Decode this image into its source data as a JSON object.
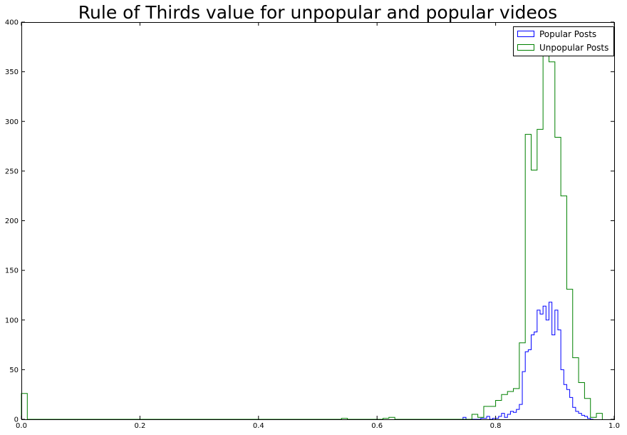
{
  "chart_data": {
    "type": "histogram",
    "title": "Rule of Thirds value for unpopular and popular videos",
    "xlabel": "",
    "ylabel": "",
    "xlim": [
      0.0,
      1.0
    ],
    "ylim": [
      0,
      400
    ],
    "x_ticks": [
      0.0,
      0.2,
      0.4,
      0.6,
      0.8,
      1.0
    ],
    "x_tick_labels": [
      "0.0",
      "0.2",
      "0.4",
      "0.6",
      "0.8",
      "1.0"
    ],
    "y_ticks": [
      0,
      50,
      100,
      150,
      200,
      250,
      300,
      350,
      400
    ],
    "y_tick_labels": [
      "0",
      "50",
      "100",
      "150",
      "200",
      "250",
      "300",
      "350",
      "400"
    ],
    "grid": false,
    "legend": {
      "position": "top-right"
    },
    "series": [
      {
        "name": "Popular Posts",
        "color": "#0000ff",
        "bin_edges": [
          0.745,
          0.75,
          0.755,
          0.76,
          0.765,
          0.77,
          0.775,
          0.78,
          0.785,
          0.79,
          0.795,
          0.8,
          0.805,
          0.81,
          0.815,
          0.82,
          0.825,
          0.83,
          0.835,
          0.84,
          0.845,
          0.85,
          0.855,
          0.86,
          0.865,
          0.87,
          0.875,
          0.88,
          0.885,
          0.89,
          0.895,
          0.9,
          0.905,
          0.91,
          0.915,
          0.92,
          0.925,
          0.93,
          0.935,
          0.94,
          0.945,
          0.95,
          0.955,
          0.96,
          0.965
        ],
        "values": [
          2,
          0,
          0,
          0,
          0,
          0,
          1,
          1,
          3,
          0,
          1,
          1,
          3,
          6,
          2,
          5,
          8,
          7,
          10,
          15,
          48,
          68,
          70,
          85,
          88,
          110,
          106,
          114,
          100,
          118,
          85,
          110,
          90,
          50,
          35,
          30,
          22,
          12,
          8,
          6,
          4,
          3,
          1,
          0
        ]
      },
      {
        "name": "Unpopular Posts",
        "color": "#008000",
        "bin_edges": [
          0.0,
          0.01,
          0.02,
          0.03,
          0.04,
          0.05,
          0.06,
          0.07,
          0.08,
          0.09,
          0.1,
          0.11,
          0.12,
          0.13,
          0.14,
          0.15,
          0.16,
          0.17,
          0.18,
          0.19,
          0.2,
          0.21,
          0.22,
          0.23,
          0.24,
          0.25,
          0.26,
          0.27,
          0.28,
          0.29,
          0.3,
          0.31,
          0.32,
          0.33,
          0.34,
          0.35,
          0.36,
          0.37,
          0.38,
          0.39,
          0.4,
          0.41,
          0.42,
          0.43,
          0.44,
          0.45,
          0.46,
          0.47,
          0.48,
          0.49,
          0.5,
          0.51,
          0.52,
          0.53,
          0.54,
          0.55,
          0.56,
          0.57,
          0.58,
          0.59,
          0.6,
          0.61,
          0.62,
          0.63,
          0.64,
          0.65,
          0.66,
          0.67,
          0.68,
          0.69,
          0.7,
          0.71,
          0.72,
          0.73,
          0.74,
          0.75,
          0.76,
          0.77,
          0.78,
          0.79,
          0.8,
          0.81,
          0.82,
          0.83,
          0.84,
          0.85,
          0.86,
          0.87,
          0.88,
          0.89,
          0.9,
          0.91,
          0.92,
          0.93,
          0.94,
          0.95,
          0.96,
          0.97,
          0.98
        ],
        "values": [
          26,
          0,
          0,
          0,
          0,
          0,
          0,
          0,
          0,
          0,
          0,
          0,
          0,
          0,
          0,
          0,
          0,
          0,
          0,
          0,
          0,
          0,
          0,
          0,
          0,
          0,
          0,
          0,
          0,
          0,
          0,
          0,
          0,
          0,
          0,
          0,
          0,
          0,
          0,
          0,
          0,
          0,
          0,
          0,
          0,
          0,
          0,
          0,
          0,
          0,
          0,
          0,
          0,
          0,
          1,
          0,
          0,
          0,
          0,
          0,
          0,
          1,
          2,
          0,
          0,
          0,
          0,
          0,
          0,
          0,
          0,
          0,
          0,
          0,
          0,
          0,
          5,
          2,
          13,
          13,
          19,
          25,
          28,
          31,
          77,
          287,
          251,
          292,
          370,
          360,
          284,
          225,
          131,
          62,
          37,
          21,
          2,
          6
        ]
      }
    ]
  }
}
